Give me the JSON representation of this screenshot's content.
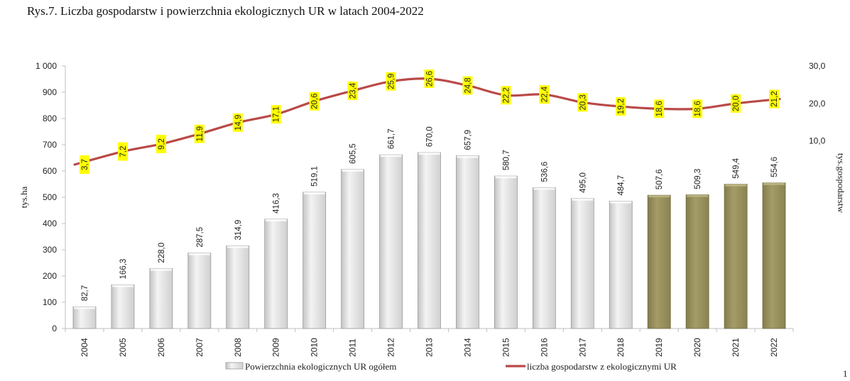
{
  "title": "Rys.7. Liczba gospodarstw i powierzchnia ekologicznych UR w latach 2004-2022",
  "page_number": "1",
  "colors": {
    "bar_grey": "#e3e3e3",
    "bar_olive": "#9a9260",
    "line": "#c0504d",
    "highlight": "#ffff00"
  },
  "chart_data": {
    "type": "bar",
    "categories": [
      "2004",
      "2005",
      "2006",
      "2007",
      "2008",
      "2009",
      "2010",
      "2011",
      "2012",
      "2013",
      "2014",
      "2015",
      "2016",
      "2017",
      "2018",
      "2019",
      "2020",
      "2021",
      "2022"
    ],
    "series": [
      {
        "name": "Powierzchnia ekologicznych UR ogółem",
        "type": "bar",
        "axis": "left",
        "values": [
          82.7,
          166.3,
          228.0,
          287.5,
          314.9,
          416.3,
          519.1,
          605.5,
          661.7,
          670.0,
          657.9,
          580.7,
          536.6,
          495.0,
          484.7,
          507.6,
          509.3,
          549.4,
          554.6
        ],
        "labels": [
          "82,7",
          "166,3",
          "228,0",
          "287,5",
          "314,9",
          "416,3",
          "519,1",
          "605,5",
          "661,7",
          "670,0",
          "657,9",
          "580,7",
          "536,6",
          "495,0",
          "484,7",
          "507,6",
          "509,3",
          "549,4",
          "554,6"
        ],
        "olive_from_index": 15
      },
      {
        "name": "liczba gospodarstw z ekologicznymi UR",
        "type": "line",
        "axis": "right",
        "values": [
          3.7,
          7.2,
          9.2,
          11.9,
          14.9,
          17.1,
          20.6,
          23.4,
          25.9,
          26.6,
          24.8,
          22.2,
          22.4,
          20.3,
          19.2,
          18.6,
          18.6,
          20.0,
          21.2
        ],
        "labels": [
          "3,7",
          "7,2",
          "9,2",
          "11,9",
          "14,9",
          "17,1",
          "20,6",
          "23,4",
          "25,9",
          "26,6",
          "24,8",
          "22,2",
          "22,4",
          "20,3",
          "19,2",
          "18,6",
          "18,6",
          "20,0",
          "21,2"
        ]
      }
    ],
    "ylabel": "tys.ha",
    "y2label": "tys.gospodarstw",
    "ylim": [
      0,
      1000
    ],
    "yticks": [
      0,
      100,
      200,
      300,
      400,
      500,
      600,
      700,
      800,
      900,
      1000
    ],
    "ytick_labels": [
      "0",
      "100",
      "200",
      "300",
      "400",
      "500",
      "600",
      "700",
      "800",
      "900",
      "1 000"
    ],
    "y2lim": [
      -40,
      30
    ],
    "y2ticks": [
      10,
      20,
      30
    ],
    "y2tick_labels": [
      "10,0",
      "20,0",
      "30,0"
    ],
    "legend_position": "bottom"
  }
}
